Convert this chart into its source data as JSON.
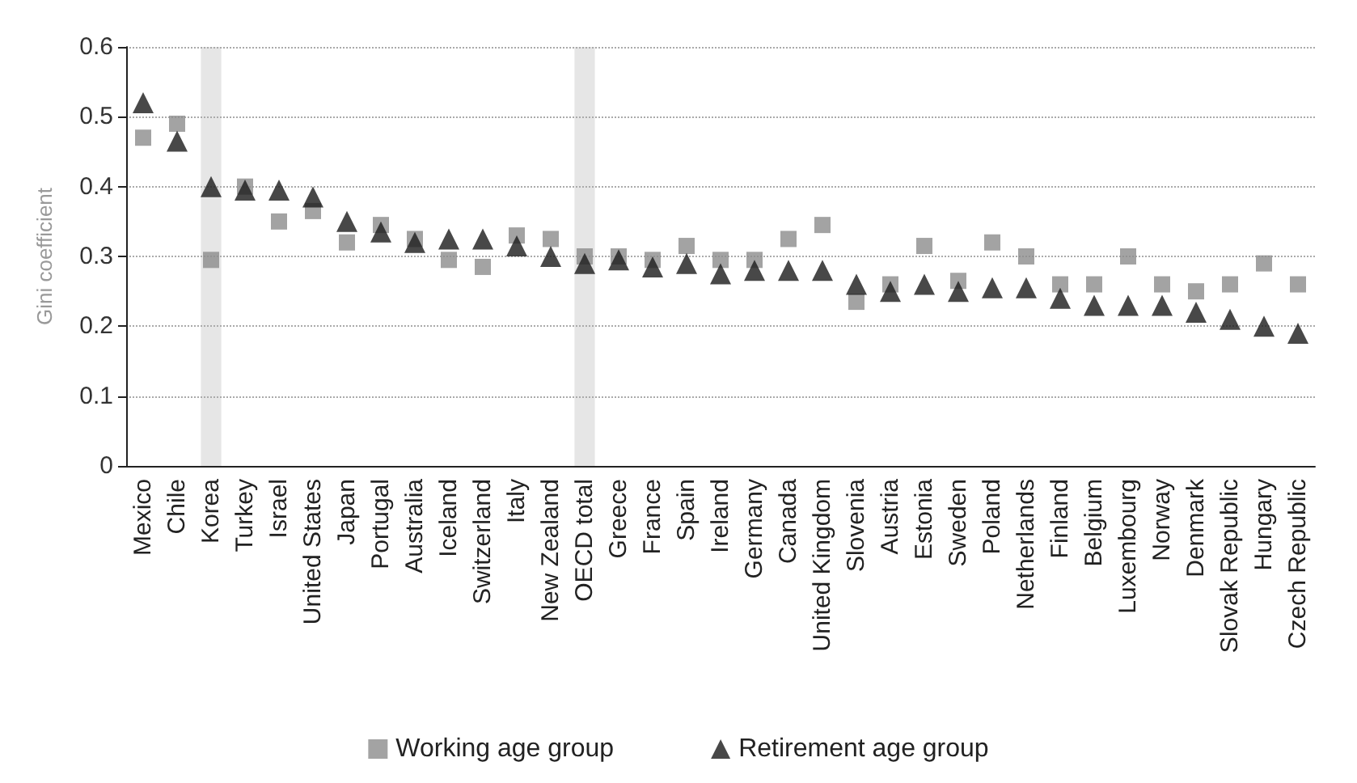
{
  "chart_data": {
    "type": "scatter",
    "ylabel": "Gini coefficient",
    "categories": [
      "Mexico",
      "Chile",
      "Korea",
      "Turkey",
      "Israel",
      "United States",
      "Japan",
      "Portugal",
      "Australia",
      "Iceland",
      "Switzerland",
      "Italy",
      "New Zealand",
      "OECD total",
      "Greece",
      "France",
      "Spain",
      "Ireland",
      "Germany",
      "Canada",
      "United Kingdom",
      "Slovenia",
      "Austria",
      "Estonia",
      "Sweden",
      "Poland",
      "Netherlands",
      "Finland",
      "Belgium",
      "Luxembourg",
      "Norway",
      "Denmark",
      "Slovak Republic",
      "Hungary",
      "Czech Republic"
    ],
    "series": [
      {
        "name": "Working age group",
        "color": "#8c8c8c",
        "marker": "square",
        "values": [
          0.47,
          0.49,
          0.295,
          0.4,
          0.35,
          0.365,
          0.32,
          0.345,
          0.325,
          0.295,
          0.285,
          0.33,
          0.325,
          0.3,
          0.3,
          0.295,
          0.315,
          0.295,
          0.295,
          0.325,
          0.345,
          0.235,
          0.26,
          0.315,
          0.265,
          0.32,
          0.3,
          0.26,
          0.26,
          0.3,
          0.26,
          0.25,
          0.26,
          0.29,
          0.26
        ]
      },
      {
        "name": "Retirement age group",
        "color": "#1a1a1a",
        "marker": "triangle",
        "values": [
          0.52,
          0.465,
          0.4,
          0.395,
          0.395,
          0.385,
          0.35,
          0.335,
          0.32,
          0.325,
          0.325,
          0.315,
          0.3,
          0.29,
          0.295,
          0.285,
          0.29,
          0.275,
          0.28,
          0.28,
          0.28,
          0.26,
          0.25,
          0.26,
          0.25,
          0.255,
          0.255,
          0.24,
          0.23,
          0.23,
          0.23,
          0.22,
          0.21,
          0.2,
          0.19
        ]
      }
    ],
    "ylim": [
      0,
      0.6
    ],
    "yticks": [
      0,
      0.1,
      0.2,
      0.3,
      0.4,
      0.5,
      0.6
    ],
    "bands": [
      {
        "axis": "x",
        "from": "Korea",
        "to": "Korea",
        "color": "#e6e6e6"
      },
      {
        "axis": "x",
        "from": "OECD total",
        "to": "OECD total",
        "color": "#e6e6e6"
      }
    ],
    "grid": "y",
    "legend": "bottom"
  }
}
